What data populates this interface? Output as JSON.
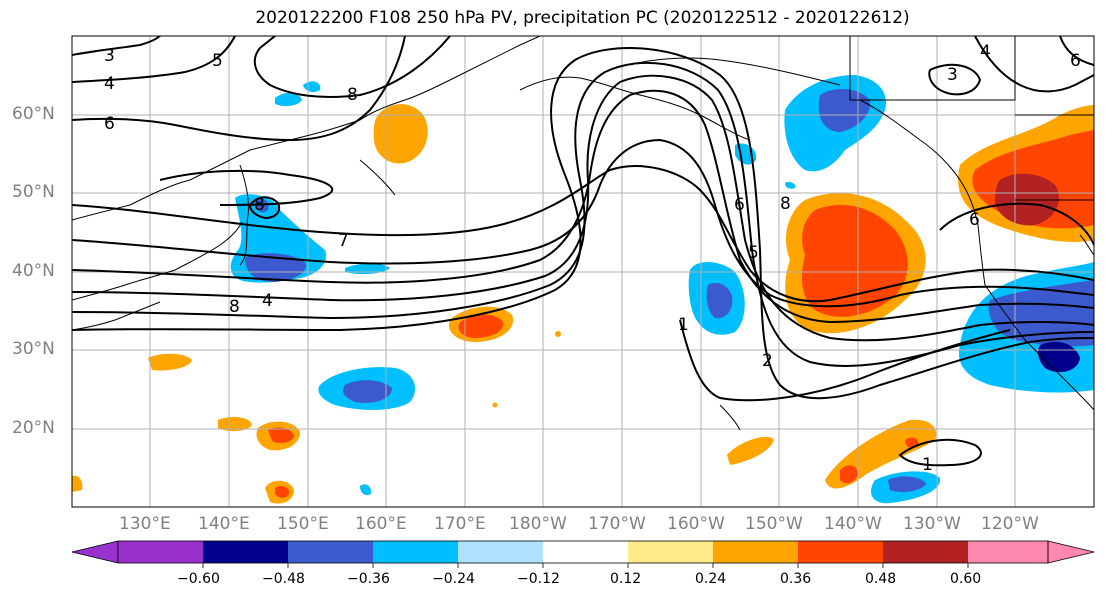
{
  "title": "2020122200 F108 250 hPa PV, precipitation PC (2020122512 - 2020122612)",
  "lat_labels": [
    "60°N",
    "50°N",
    "40°N",
    "30°N",
    "20°N"
  ],
  "lon_labels": [
    "130°E",
    "140°E",
    "150°E",
    "160°E",
    "170°E",
    "180°W",
    "170°W",
    "160°W",
    "150°W",
    "140°W",
    "130°W",
    "120°W"
  ],
  "colorbar": {
    "ticks": [
      "−0.60",
      "−0.48",
      "−0.36",
      "−0.24",
      "−0.12",
      "0.12",
      "0.24",
      "0.36",
      "0.48",
      "0.60"
    ],
    "colors": [
      "#9932cc",
      "#00008b",
      "#3a5acd",
      "#00bfff",
      "#b0e2ff",
      "#ffffff",
      "#ffeb8a",
      "#ffa500",
      "#ff4500",
      "#b22222",
      "#ff88b0"
    ]
  },
  "contour_labels": [
    "3",
    "4",
    "6",
    "5",
    "8",
    "8",
    "7",
    "8",
    "4",
    "6",
    "8",
    "5",
    "1",
    "2",
    "6",
    "3",
    "4",
    "6",
    "1"
  ]
}
